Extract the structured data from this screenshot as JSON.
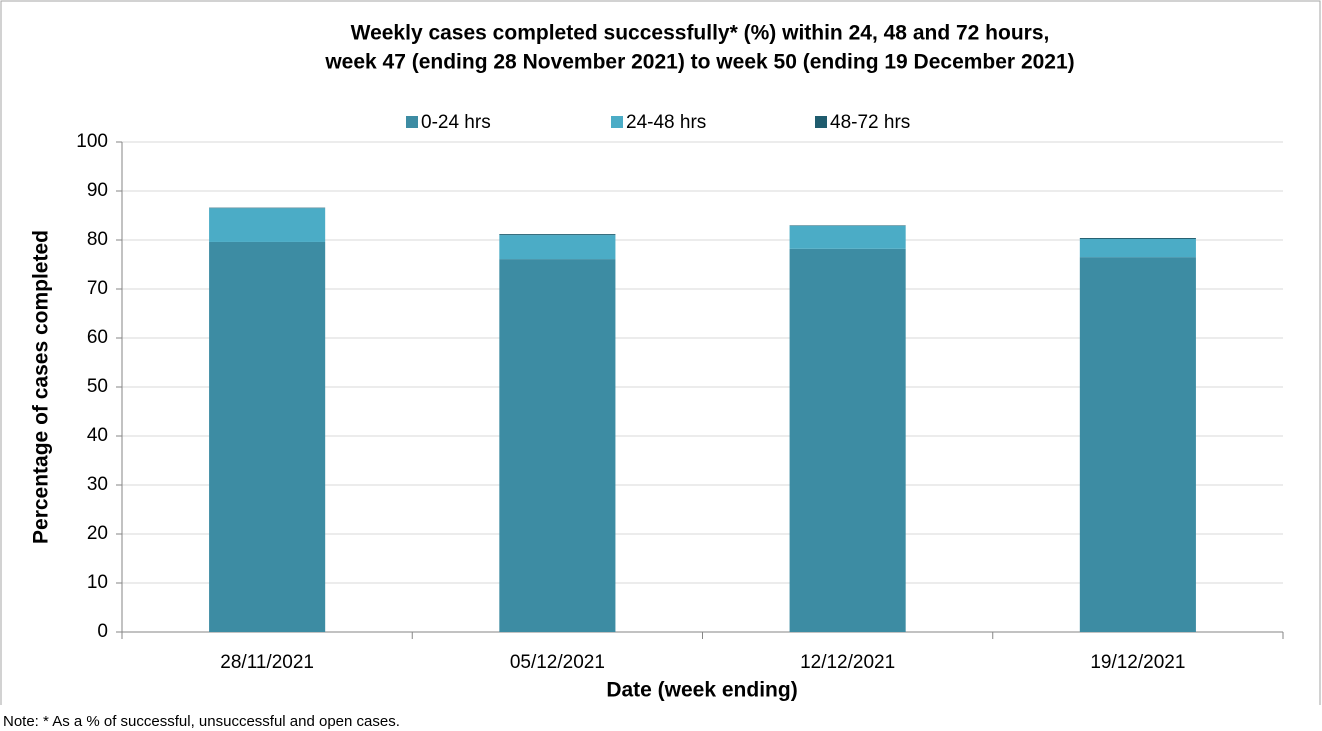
{
  "chart_data": {
    "type": "stacked_bar",
    "title": "Weekly cases completed successfully* (%) within 24, 48 and 72 hours,",
    "subtitle": "week 47 (ending 28 November 2021) to week 50 (ending 19 December 2021)",
    "x_label": "Date (week ending)",
    "y_label": "Percentage of cases completed",
    "note": "Note: * As a % of successful, unsuccessful and open cases.",
    "categories": [
      "28/11/2021",
      "05/12/2021",
      "12/12/2021",
      "19/12/2021"
    ],
    "series": [
      {
        "name": "0-24 hrs",
        "color": "#3d8ca3",
        "values": [
          79.6,
          76.1,
          78.2,
          76.5
        ]
      },
      {
        "name": "24-48 hrs",
        "color": "#4bacc6",
        "values": [
          6.9,
          4.9,
          4.7,
          3.7
        ]
      },
      {
        "name": "48-72 hrs",
        "color": "#1f5c6e",
        "values": [
          0.1,
          0.2,
          0.1,
          0.2
        ]
      }
    ],
    "ylim": [
      0,
      100
    ],
    "yticks": [
      0,
      10,
      20,
      30,
      40,
      50,
      60,
      70,
      80,
      90,
      100
    ],
    "grid": true,
    "legend": "top"
  }
}
